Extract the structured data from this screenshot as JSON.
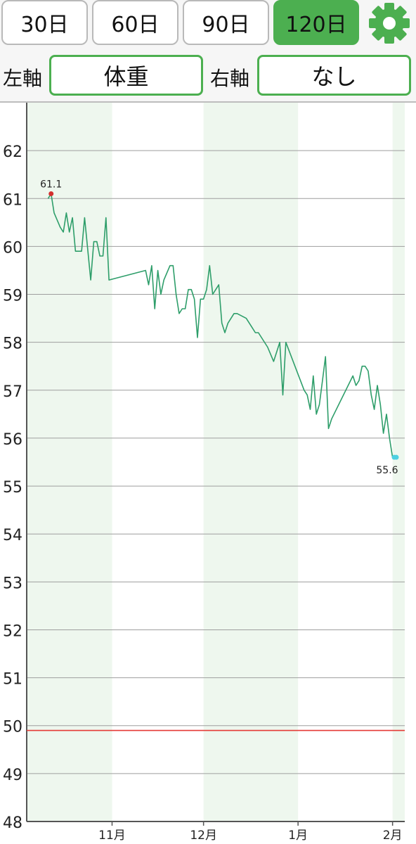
{
  "period_tabs": [
    {
      "label": "30日",
      "active": false
    },
    {
      "label": "60日",
      "active": false
    },
    {
      "label": "90日",
      "active": false
    },
    {
      "label": "120日",
      "active": true
    }
  ],
  "settings": {
    "icon": "gear-icon",
    "color": "#4caf50"
  },
  "left_axis": {
    "label": "左軸",
    "value": "体重"
  },
  "right_axis": {
    "label": "右軸",
    "value": "なし"
  },
  "colors": {
    "accent": "#4caf50",
    "line": "#2e9e6a",
    "band": "#eef7ee",
    "target": "#e53935",
    "max_marker": "#d32f2f",
    "last_marker": "#4dd0e1"
  },
  "chart_data": {
    "type": "line",
    "title": "",
    "ylabel": "",
    "xlabel": "",
    "ylim": [
      48,
      63
    ],
    "xlim": [
      "2025-10-04",
      "2026-02-05"
    ],
    "yticks": [
      48,
      49,
      50,
      51,
      52,
      53,
      54,
      55,
      56,
      57,
      58,
      59,
      60,
      61,
      62
    ],
    "xticks": [
      {
        "date": "2025-11-01",
        "label": "11月"
      },
      {
        "date": "2025-12-01",
        "label": "12月"
      },
      {
        "date": "2026-01-01",
        "label": "1月"
      },
      {
        "date": "2026-02-01",
        "label": "2月"
      }
    ],
    "shaded_months": [
      "2025-10",
      "2025-12",
      "2026-02"
    ],
    "grid": true,
    "target_line": 49.9,
    "max_label": "61.1",
    "last_label": "55.6",
    "series": [
      {
        "points": [
          [
            "2025-10-11",
            61.0
          ],
          [
            "2025-10-12",
            61.1
          ],
          [
            "2025-10-13",
            60.7
          ],
          [
            "2025-10-15",
            60.4
          ],
          [
            "2025-10-16",
            60.3
          ],
          [
            "2025-10-17",
            60.7
          ],
          [
            "2025-10-18",
            60.3
          ],
          [
            "2025-10-19",
            60.6
          ],
          [
            "2025-10-20",
            59.9
          ],
          [
            "2025-10-22",
            59.9
          ],
          [
            "2025-10-23",
            60.6
          ],
          [
            "2025-10-25",
            59.3
          ],
          [
            "2025-10-26",
            60.1
          ],
          [
            "2025-10-27",
            60.1
          ],
          [
            "2025-10-28",
            59.8
          ],
          [
            "2025-10-29",
            59.8
          ],
          [
            "2025-10-30",
            60.6
          ],
          [
            "2025-10-31",
            59.3
          ],
          [
            "2025-11-12",
            59.5
          ],
          [
            "2025-11-13",
            59.2
          ],
          [
            "2025-11-14",
            59.6
          ],
          [
            "2025-11-15",
            58.7
          ],
          [
            "2025-11-16",
            59.5
          ],
          [
            "2025-11-17",
            59.0
          ],
          [
            "2025-11-18",
            59.3
          ],
          [
            "2025-11-20",
            59.6
          ],
          [
            "2025-11-21",
            59.6
          ],
          [
            "2025-11-22",
            59.0
          ],
          [
            "2025-11-23",
            58.6
          ],
          [
            "2025-11-24",
            58.7
          ],
          [
            "2025-11-25",
            58.7
          ],
          [
            "2025-11-26",
            59.1
          ],
          [
            "2025-11-27",
            59.1
          ],
          [
            "2025-11-28",
            58.9
          ],
          [
            "2025-11-29",
            58.1
          ],
          [
            "2025-11-30",
            58.9
          ],
          [
            "2025-12-01",
            58.9
          ],
          [
            "2025-12-02",
            59.1
          ],
          [
            "2025-12-03",
            59.6
          ],
          [
            "2025-12-04",
            59.0
          ],
          [
            "2025-12-05",
            59.1
          ],
          [
            "2025-12-06",
            59.2
          ],
          [
            "2025-12-07",
            58.4
          ],
          [
            "2025-12-08",
            58.2
          ],
          [
            "2025-12-09",
            58.4
          ],
          [
            "2025-12-11",
            58.6
          ],
          [
            "2025-12-12",
            58.6
          ],
          [
            "2025-12-15",
            58.5
          ],
          [
            "2025-12-17",
            58.3
          ],
          [
            "2025-12-18",
            58.2
          ],
          [
            "2025-12-19",
            58.2
          ],
          [
            "2025-12-22",
            57.9
          ],
          [
            "2025-12-24",
            57.6
          ],
          [
            "2025-12-26",
            58.0
          ],
          [
            "2025-12-27",
            56.9
          ],
          [
            "2025-12-28",
            58.0
          ],
          [
            "2026-01-03",
            57.0
          ],
          [
            "2026-01-04",
            56.9
          ],
          [
            "2026-01-05",
            56.6
          ],
          [
            "2026-01-06",
            57.3
          ],
          [
            "2026-01-07",
            56.5
          ],
          [
            "2026-01-08",
            56.7
          ],
          [
            "2026-01-09",
            57.2
          ],
          [
            "2026-01-10",
            57.7
          ],
          [
            "2026-01-11",
            56.2
          ],
          [
            "2026-01-12",
            56.4
          ],
          [
            "2026-01-19",
            57.3
          ],
          [
            "2026-01-20",
            57.1
          ],
          [
            "2026-01-21",
            57.2
          ],
          [
            "2026-01-22",
            57.5
          ],
          [
            "2026-01-23",
            57.5
          ],
          [
            "2026-01-24",
            57.4
          ],
          [
            "2026-01-25",
            56.9
          ],
          [
            "2026-01-26",
            56.6
          ],
          [
            "2026-01-27",
            57.1
          ],
          [
            "2026-01-28",
            56.7
          ],
          [
            "2026-01-29",
            56.1
          ],
          [
            "2026-01-30",
            56.5
          ],
          [
            "2026-01-31",
            56.0
          ],
          [
            "2026-02-01",
            55.6
          ],
          [
            "2026-02-02",
            55.6
          ]
        ]
      }
    ]
  }
}
